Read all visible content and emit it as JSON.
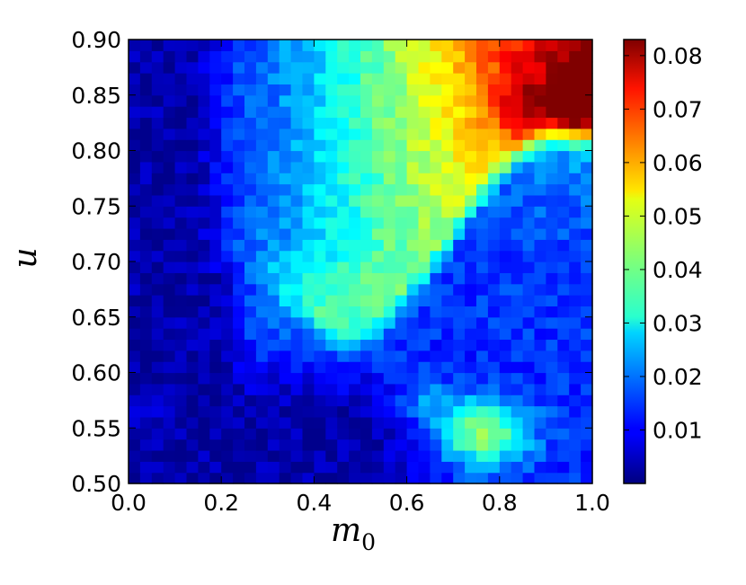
{
  "chart_data": {
    "type": "heatmap",
    "title": "",
    "xlabel": "m",
    "xlabel_subscript": "0",
    "ylabel": "u",
    "xlim": [
      0.0,
      1.0
    ],
    "ylim": [
      0.5,
      0.9
    ],
    "x_ticks": [
      "0.0",
      "0.2",
      "0.4",
      "0.6",
      "0.8",
      "1.0"
    ],
    "y_ticks": [
      "0.50",
      "0.55",
      "0.60",
      "0.65",
      "0.70",
      "0.75",
      "0.80",
      "0.85",
      "0.90"
    ],
    "grid": false,
    "colormap": "jet",
    "colorbar": {
      "range": [
        0.0,
        0.083
      ],
      "ticks": [
        "0.01",
        "0.02",
        "0.03",
        "0.04",
        "0.05",
        "0.06",
        "0.07",
        "0.08"
      ],
      "tick_values": [
        0.01,
        0.02,
        0.03,
        0.04,
        0.05,
        0.06,
        0.07,
        0.08
      ]
    },
    "grid_resolution": {
      "x_cells": 40,
      "y_cells": 40
    },
    "x_range": [
      0.0,
      1.0
    ],
    "y_range": [
      0.5,
      0.9
    ],
    "value_model": {
      "description_of_regions": [
        {
          "region": "dark-blue column",
          "x_range": [
            0.0,
            0.15
          ],
          "y_range": [
            0.5,
            0.9
          ],
          "value": 0.004
        },
        {
          "region": "light-blue and cyan wedge",
          "x_range": [
            0.15,
            0.75
          ],
          "y_range": [
            0.65,
            0.9
          ],
          "value": 0.03
        },
        {
          "region": "yellow-orange top-right",
          "x_range": [
            0.75,
            1.0
          ],
          "y_range": [
            0.78,
            0.9
          ],
          "value": 0.06
        },
        {
          "region": "red peak",
          "x_range": [
            0.93,
            1.0
          ],
          "y_range": [
            0.82,
            0.88
          ],
          "value": 0.08
        },
        {
          "region": "dark-blue right band",
          "x_range": [
            0.6,
            1.0
          ],
          "y_range": [
            0.6,
            0.78
          ],
          "value": 0.008
        },
        {
          "region": "dark-blue lower arc",
          "x_range": [
            0.1,
            0.7
          ],
          "y_range": [
            0.5,
            0.6
          ],
          "value": 0.004
        },
        {
          "region": "cyan blob lower-right",
          "x_range": [
            0.6,
            0.9
          ],
          "y_range": [
            0.51,
            0.59
          ],
          "value": 0.035
        }
      ]
    }
  }
}
